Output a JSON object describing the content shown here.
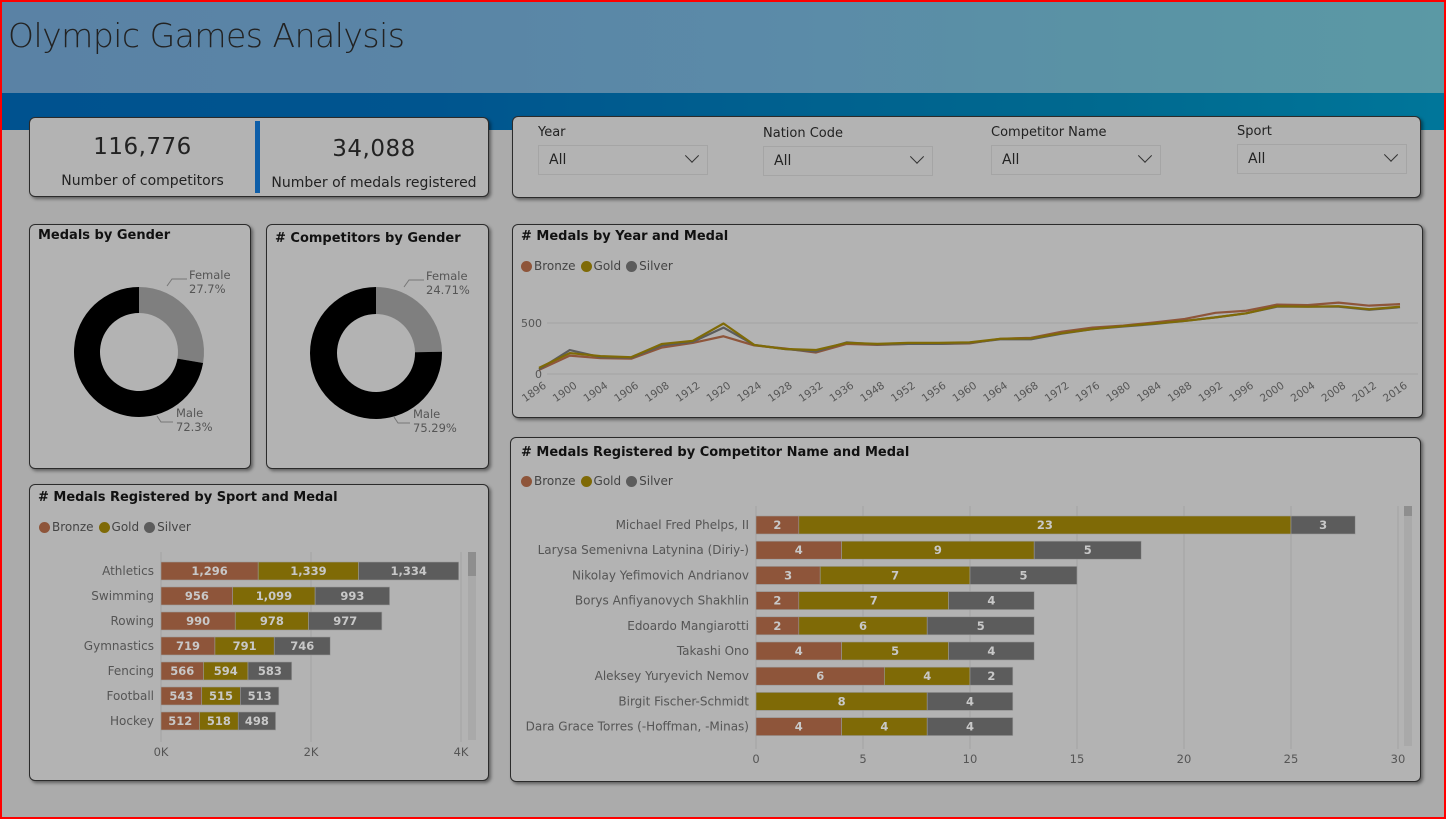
{
  "header": {
    "title": "Olympic Games Analysis"
  },
  "kpis": [
    {
      "value": "116,776",
      "label": "Number of competitors"
    },
    {
      "value": "34,088",
      "label": "Number of medals registered"
    }
  ],
  "slicers": [
    {
      "label": "Year",
      "value": "All"
    },
    {
      "label": "Nation Code",
      "value": "All"
    },
    {
      "label": "Competitor Name",
      "value": "All"
    },
    {
      "label": "Sport",
      "value": "All"
    }
  ],
  "colors": {
    "bronze": "#8e553a",
    "gold": "#7f6a06",
    "silver": "#5c5c5c",
    "female": "#7f7f7f",
    "male": "#000000"
  },
  "legend": [
    "Bronze",
    "Gold",
    "Silver"
  ],
  "chart_data": [
    {
      "id": "medals_by_gender",
      "type": "pie",
      "title": "Medals by Gender",
      "slices": [
        {
          "label": "Female",
          "value": 27.7,
          "display": "27.7%"
        },
        {
          "label": "Male",
          "value": 72.3,
          "display": "72.3%"
        }
      ]
    },
    {
      "id": "competitors_by_gender",
      "type": "pie",
      "title": "# Competitors by Gender",
      "slices": [
        {
          "label": "Female",
          "value": 24.71,
          "display": "24.71%"
        },
        {
          "label": "Male",
          "value": 75.29,
          "display": "75.29%"
        }
      ]
    },
    {
      "id": "medals_by_year",
      "type": "line",
      "title": "# Medals by Year and Medal",
      "x": [
        "1896",
        "1900",
        "1904",
        "1906",
        "1908",
        "1912",
        "1920",
        "1924",
        "1928",
        "1932",
        "1936",
        "1948",
        "1952",
        "1956",
        "1960",
        "1964",
        "1968",
        "1972",
        "1976",
        "1980",
        "1984",
        "1988",
        "1992",
        "1996",
        "2000",
        "2004",
        "2008",
        "2012",
        "2016"
      ],
      "yticks": [
        0,
        500
      ],
      "ylim": [
        0,
        820
      ],
      "grid": true,
      "legend_position": "top-left",
      "series": [
        {
          "name": "Bronze",
          "values": [
            40,
            180,
            155,
            150,
            260,
            305,
            370,
            280,
            250,
            210,
            295,
            285,
            295,
            295,
            300,
            345,
            355,
            415,
            455,
            475,
            505,
            540,
            600,
            620,
            680,
            675,
            700,
            670,
            685
          ]
        },
        {
          "name": "Gold",
          "values": [
            60,
            205,
            175,
            165,
            295,
            325,
            495,
            285,
            245,
            235,
            305,
            295,
            305,
            305,
            310,
            345,
            350,
            400,
            440,
            470,
            495,
            520,
            555,
            595,
            665,
            660,
            665,
            635,
            660
          ]
        },
        {
          "name": "Silver",
          "values": [
            45,
            235,
            165,
            160,
            280,
            315,
            455,
            285,
            245,
            220,
            310,
            290,
            295,
            295,
            305,
            340,
            340,
            395,
            440,
            465,
            490,
            520,
            555,
            595,
            660,
            660,
            660,
            630,
            655
          ]
        }
      ]
    },
    {
      "id": "medals_by_sport",
      "type": "bar",
      "orientation": "horizontal-stacked",
      "title": "# Medals Registered by Sport and Medal",
      "categories": [
        "Athletics",
        "Swimming",
        "Rowing",
        "Gymnastics",
        "Fencing",
        "Football",
        "Hockey"
      ],
      "xticks": [
        "0K",
        "2K",
        "4K"
      ],
      "xlim": [
        0,
        4000
      ],
      "series": [
        {
          "name": "Bronze",
          "values": [
            1296,
            956,
            990,
            719,
            566,
            543,
            512
          ],
          "labels": [
            "1,296",
            "956",
            "990",
            "719",
            "566",
            "543",
            "512"
          ]
        },
        {
          "name": "Gold",
          "values": [
            1339,
            1099,
            978,
            791,
            594,
            515,
            518
          ],
          "labels": [
            "1,339",
            "1,099",
            "978",
            "791",
            "594",
            "515",
            "518"
          ]
        },
        {
          "name": "Silver",
          "values": [
            1334,
            993,
            977,
            746,
            583,
            513,
            498
          ],
          "labels": [
            "1,334",
            "993",
            "977",
            "746",
            "583",
            "513",
            "498"
          ]
        }
      ]
    },
    {
      "id": "medals_by_competitor",
      "type": "bar",
      "orientation": "horizontal-stacked",
      "title": "# Medals Registered by Competitor Name and Medal",
      "categories": [
        "Michael Fred Phelps, II",
        "Larysa Semenivna Latynina (Diriy-)",
        "Nikolay Yefimovich Andrianov",
        "Borys Anfiyanovych Shakhlin",
        "Edoardo Mangiarotti",
        "Takashi Ono",
        "Aleksey Yuryevich Nemov",
        "Birgit Fischer-Schmidt",
        "Dara Grace Torres (-Hoffman, -Minas)"
      ],
      "xticks": [
        "0",
        "5",
        "10",
        "15",
        "20",
        "25",
        "30"
      ],
      "xlim": [
        0,
        30
      ],
      "series": [
        {
          "name": "Bronze",
          "values": [
            2,
            4,
            3,
            2,
            2,
            4,
            6,
            0,
            4
          ]
        },
        {
          "name": "Gold",
          "values": [
            23,
            9,
            7,
            7,
            6,
            5,
            4,
            8,
            4
          ]
        },
        {
          "name": "Silver",
          "values": [
            3,
            5,
            5,
            4,
            5,
            4,
            2,
            4,
            4
          ]
        }
      ]
    }
  ]
}
